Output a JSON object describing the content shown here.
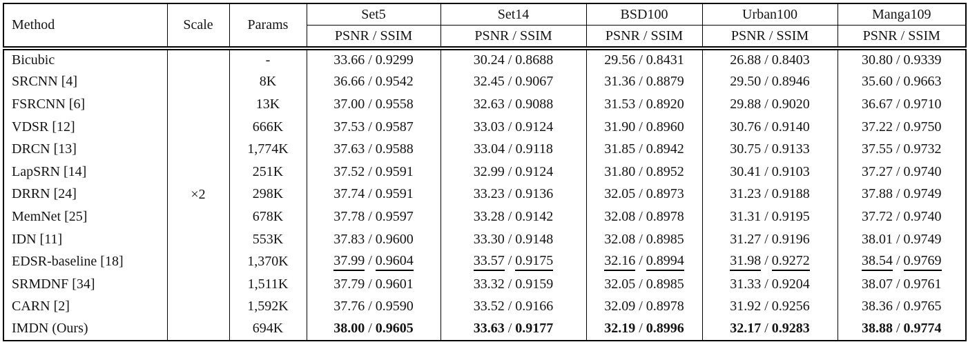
{
  "table": {
    "headers": {
      "method": "Method",
      "scale": "Scale",
      "params": "Params",
      "metric": "PSNR / SSIM",
      "datasets": [
        "Set5",
        "Set14",
        "BSD100",
        "Urban100",
        "Manga109"
      ]
    },
    "scale": "×2",
    "separator": "/",
    "rows": [
      {
        "method": "Bicubic",
        "params": "-",
        "emphasis": "none",
        "results": [
          {
            "psnr": "33.66",
            "ssim": "0.9299"
          },
          {
            "psnr": "30.24",
            "ssim": "0.8688"
          },
          {
            "psnr": "29.56",
            "ssim": "0.8431"
          },
          {
            "psnr": "26.88",
            "ssim": "0.8403"
          },
          {
            "psnr": "30.80",
            "ssim": "0.9339"
          }
        ]
      },
      {
        "method": "SRCNN [4]",
        "params": "8K",
        "emphasis": "none",
        "results": [
          {
            "psnr": "36.66",
            "ssim": "0.9542"
          },
          {
            "psnr": "32.45",
            "ssim": "0.9067"
          },
          {
            "psnr": "31.36",
            "ssim": "0.8879"
          },
          {
            "psnr": "29.50",
            "ssim": "0.8946"
          },
          {
            "psnr": "35.60",
            "ssim": "0.9663"
          }
        ]
      },
      {
        "method": "FSRCNN [6]",
        "params": "13K",
        "emphasis": "none",
        "results": [
          {
            "psnr": "37.00",
            "ssim": "0.9558"
          },
          {
            "psnr": "32.63",
            "ssim": "0.9088"
          },
          {
            "psnr": "31.53",
            "ssim": "0.8920"
          },
          {
            "psnr": "29.88",
            "ssim": "0.9020"
          },
          {
            "psnr": "36.67",
            "ssim": "0.9710"
          }
        ]
      },
      {
        "method": "VDSR [12]",
        "params": "666K",
        "emphasis": "none",
        "results": [
          {
            "psnr": "37.53",
            "ssim": "0.9587"
          },
          {
            "psnr": "33.03",
            "ssim": "0.9124"
          },
          {
            "psnr": "31.90",
            "ssim": "0.8960"
          },
          {
            "psnr": "30.76",
            "ssim": "0.9140"
          },
          {
            "psnr": "37.22",
            "ssim": "0.9750"
          }
        ]
      },
      {
        "method": "DRCN [13]",
        "params": "1,774K",
        "emphasis": "none",
        "results": [
          {
            "psnr": "37.63",
            "ssim": "0.9588"
          },
          {
            "psnr": "33.04",
            "ssim": "0.9118"
          },
          {
            "psnr": "31.85",
            "ssim": "0.8942"
          },
          {
            "psnr": "30.75",
            "ssim": "0.9133"
          },
          {
            "psnr": "37.55",
            "ssim": "0.9732"
          }
        ]
      },
      {
        "method": "LapSRN [14]",
        "params": "251K",
        "emphasis": "none",
        "results": [
          {
            "psnr": "37.52",
            "ssim": "0.9591"
          },
          {
            "psnr": "32.99",
            "ssim": "0.9124"
          },
          {
            "psnr": "31.80",
            "ssim": "0.8952"
          },
          {
            "psnr": "30.41",
            "ssim": "0.9103"
          },
          {
            "psnr": "37.27",
            "ssim": "0.9740"
          }
        ]
      },
      {
        "method": "DRRN [24]",
        "params": "298K",
        "emphasis": "none",
        "results": [
          {
            "psnr": "37.74",
            "ssim": "0.9591"
          },
          {
            "psnr": "33.23",
            "ssim": "0.9136"
          },
          {
            "psnr": "32.05",
            "ssim": "0.8973"
          },
          {
            "psnr": "31.23",
            "ssim": "0.9188"
          },
          {
            "psnr": "37.88",
            "ssim": "0.9749"
          }
        ]
      },
      {
        "method": "MemNet [25]",
        "params": "678K",
        "emphasis": "none",
        "results": [
          {
            "psnr": "37.78",
            "ssim": "0.9597"
          },
          {
            "psnr": "33.28",
            "ssim": "0.9142"
          },
          {
            "psnr": "32.08",
            "ssim": "0.8978"
          },
          {
            "psnr": "31.31",
            "ssim": "0.9195"
          },
          {
            "psnr": "37.72",
            "ssim": "0.9740"
          }
        ]
      },
      {
        "method": "IDN [11]",
        "params": "553K",
        "emphasis": "none",
        "results": [
          {
            "psnr": "37.83",
            "ssim": "0.9600"
          },
          {
            "psnr": "33.30",
            "ssim": "0.9148"
          },
          {
            "psnr": "32.08",
            "ssim": "0.8985"
          },
          {
            "psnr": "31.27",
            "ssim": "0.9196"
          },
          {
            "psnr": "38.01",
            "ssim": "0.9749"
          }
        ]
      },
      {
        "method": "EDSR-baseline [18]",
        "params": "1,370K",
        "emphasis": "underline",
        "results": [
          {
            "psnr": "37.99",
            "ssim": "0.9604"
          },
          {
            "psnr": "33.57",
            "ssim": "0.9175"
          },
          {
            "psnr": "32.16",
            "ssim": "0.8994"
          },
          {
            "psnr": "31.98",
            "ssim": "0.9272"
          },
          {
            "psnr": "38.54",
            "ssim": "0.9769"
          }
        ]
      },
      {
        "method": "SRMDNF [34]",
        "params": "1,511K",
        "emphasis": "none",
        "results": [
          {
            "psnr": "37.79",
            "ssim": "0.9601"
          },
          {
            "psnr": "33.32",
            "ssim": "0.9159"
          },
          {
            "psnr": "32.05",
            "ssim": "0.8985"
          },
          {
            "psnr": "31.33",
            "ssim": "0.9204"
          },
          {
            "psnr": "38.07",
            "ssim": "0.9761"
          }
        ]
      },
      {
        "method": "CARN [2]",
        "params": "1,592K",
        "emphasis": "none",
        "results": [
          {
            "psnr": "37.76",
            "ssim": "0.9590"
          },
          {
            "psnr": "33.52",
            "ssim": "0.9166"
          },
          {
            "psnr": "32.09",
            "ssim": "0.8978"
          },
          {
            "psnr": "31.92",
            "ssim": "0.9256"
          },
          {
            "psnr": "38.36",
            "ssim": "0.9765"
          }
        ]
      },
      {
        "method": "IMDN (Ours)",
        "params": "694K",
        "emphasis": "bold",
        "results": [
          {
            "psnr": "38.00",
            "ssim": "0.9605"
          },
          {
            "psnr": "33.63",
            "ssim": "0.9177"
          },
          {
            "psnr": "32.19",
            "ssim": "0.8996"
          },
          {
            "psnr": "32.17",
            "ssim": "0.9283"
          },
          {
            "psnr": "38.88",
            "ssim": "0.9774"
          }
        ]
      }
    ]
  }
}
